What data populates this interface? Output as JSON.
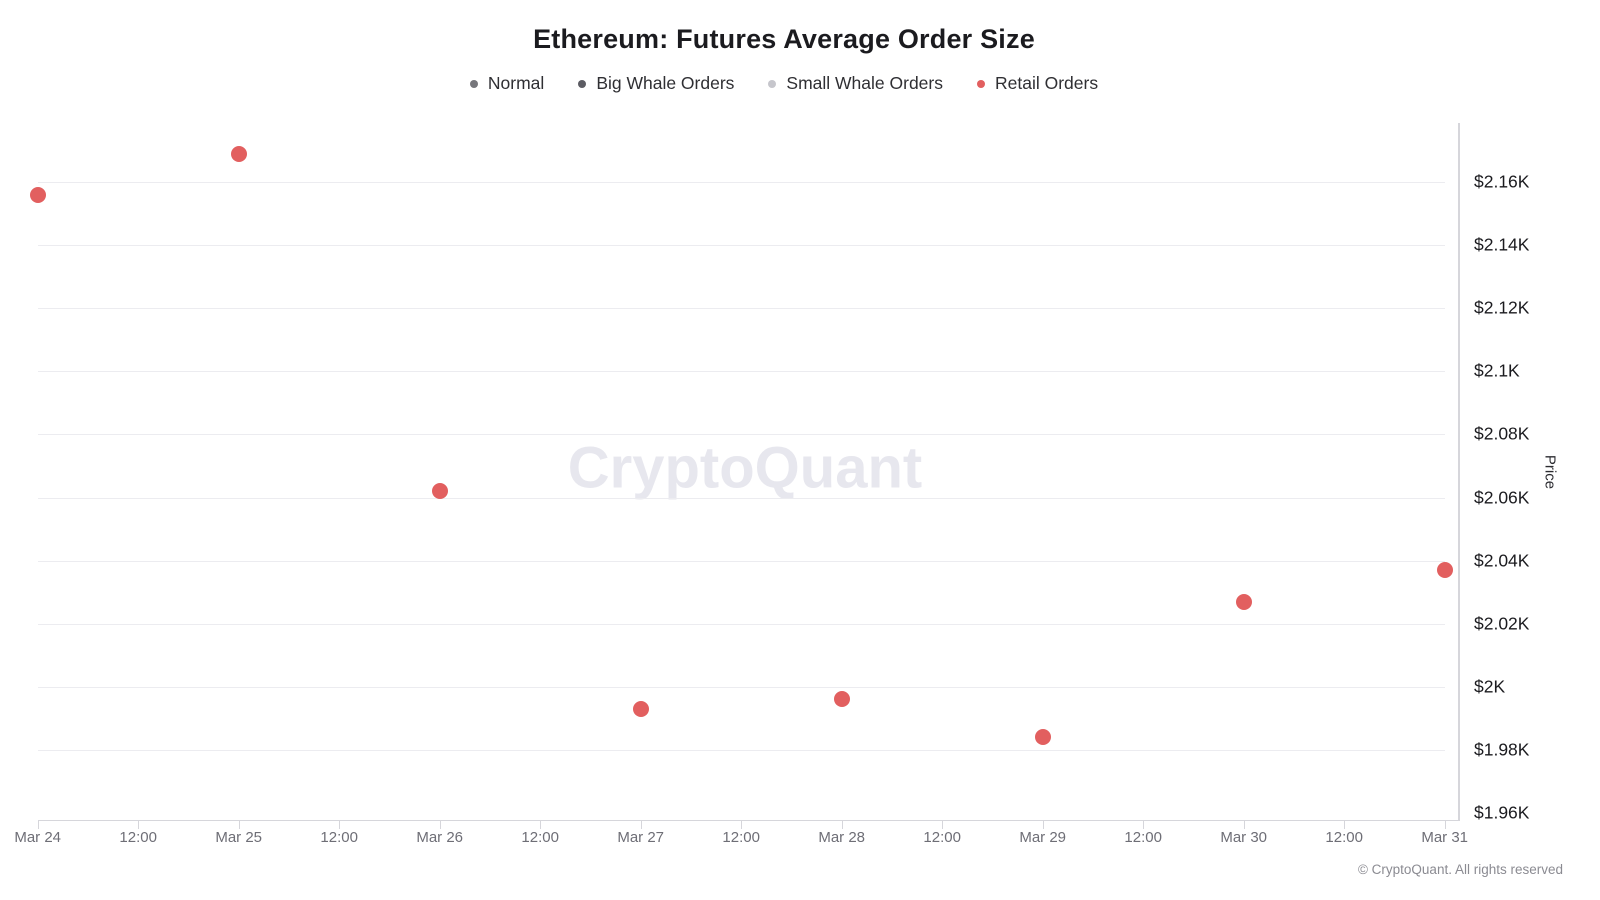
{
  "chart_data": {
    "type": "scatter",
    "title": "Ethereum: Futures Average Order Size",
    "ylabel": "Price",
    "xlabel": "",
    "grid": true,
    "legend_position": "top",
    "x_ticks": [
      "Mar 24",
      "12:00",
      "Mar 25",
      "12:00",
      "Mar 26",
      "12:00",
      "Mar 27",
      "12:00",
      "Mar 28",
      "12:00",
      "Mar 29",
      "12:00",
      "Mar 30",
      "12:00",
      "Mar 31"
    ],
    "y_ticks": [
      {
        "label": "$2.16K",
        "value": 2160
      },
      {
        "label": "$2.14K",
        "value": 2140
      },
      {
        "label": "$2.12K",
        "value": 2120
      },
      {
        "label": "$2.1K",
        "value": 2100
      },
      {
        "label": "$2.08K",
        "value": 2080
      },
      {
        "label": "$2.06K",
        "value": 2060
      },
      {
        "label": "$2.04K",
        "value": 2040
      },
      {
        "label": "$2.02K",
        "value": 2020
      },
      {
        "label": "$2K",
        "value": 2000
      },
      {
        "label": "$1.98K",
        "value": 1980
      },
      {
        "label": "$1.96K",
        "value": 1960
      }
    ],
    "ylim": [
      1958,
      2179
    ],
    "series": [
      {
        "name": "Normal",
        "color": "#76767b",
        "points": []
      },
      {
        "name": "Big Whale Orders",
        "color": "#5c5c63",
        "points": []
      },
      {
        "name": "Small Whale Orders",
        "color": "#c6c6cc",
        "points": []
      },
      {
        "name": "Retail Orders",
        "color": "#e25f5f",
        "points": [
          {
            "x": "Mar 24",
            "y": 2156
          },
          {
            "x": "Mar 25",
            "y": 2169
          },
          {
            "x": "Mar 26",
            "y": 2062
          },
          {
            "x": "Mar 27",
            "y": 1993
          },
          {
            "x": "Mar 28",
            "y": 1996
          },
          {
            "x": "Mar 29",
            "y": 1984
          },
          {
            "x": "Mar 30",
            "y": 2027
          },
          {
            "x": "Mar 31",
            "y": 2037
          }
        ]
      }
    ]
  },
  "watermark": {
    "text": "CryptoQuant"
  },
  "footer": {
    "copyright": "© CryptoQuant. All rights reserved"
  }
}
